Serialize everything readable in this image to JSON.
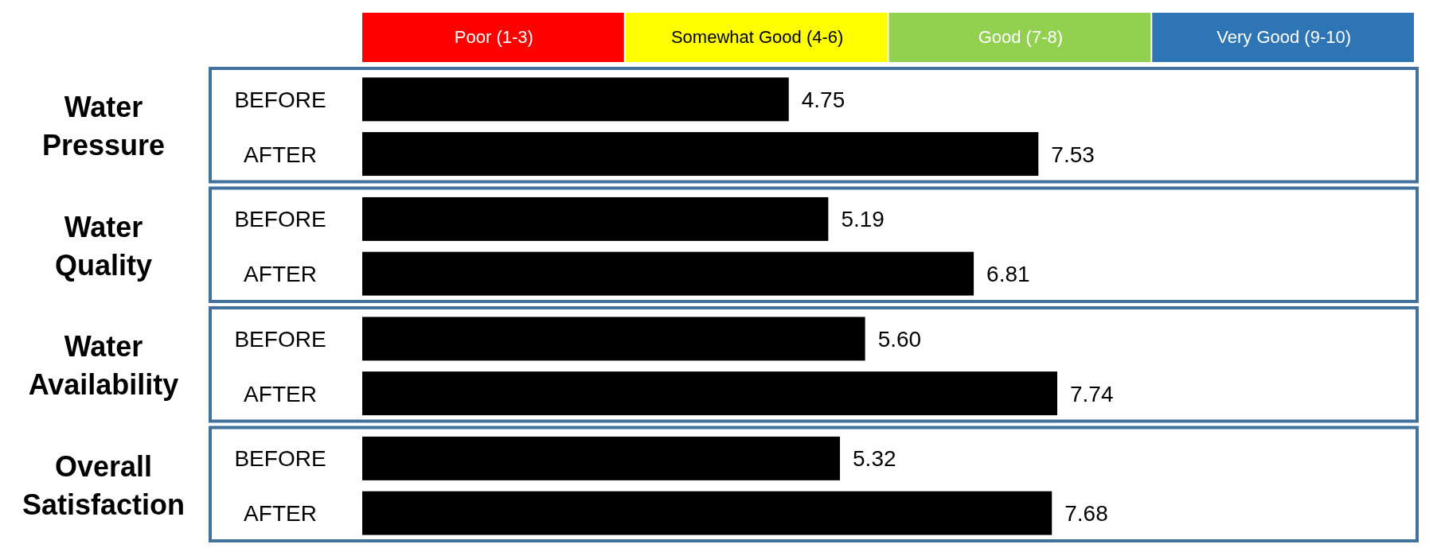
{
  "chart_data": [
    {
      "type": "other",
      "categories": [
        "Poor (1-3)",
        "Somewhat Good (4-6)",
        "Good (7-8)",
        "Very Good (9-10)"
      ],
      "colors": [
        "#ff0000",
        "#ffff00",
        "#92d050",
        "#2e75b6"
      ]
    },
    {
      "type": "bar",
      "orientation": "horizontal",
      "title": "Water Pressure",
      "categories": [
        "BEFORE",
        "AFTER"
      ],
      "values": [
        4.75,
        7.53
      ],
      "value_labels": [
        "4.75",
        "7.53"
      ],
      "color": "#000000"
    },
    {
      "type": "bar",
      "orientation": "horizontal",
      "title": "Water Quality",
      "categories": [
        "BEFORE",
        "AFTER"
      ],
      "values": [
        5.19,
        6.81
      ],
      "value_labels": [
        "5.19",
        "6.81"
      ],
      "color": "#000000"
    },
    {
      "type": "bar",
      "orientation": "horizontal",
      "title": "Water Availability",
      "categories": [
        "BEFORE",
        "AFTER"
      ],
      "values": [
        5.6,
        7.74
      ],
      "value_labels": [
        "5.60",
        "7.74"
      ],
      "color": "#000000"
    },
    {
      "type": "bar",
      "orientation": "horizontal",
      "title": "Overall Satisfaction",
      "categories": [
        "BEFORE",
        "AFTER"
      ],
      "values": [
        5.32,
        7.68
      ],
      "value_labels": [
        "5.32",
        "7.68"
      ],
      "color": "#000000"
    }
  ]
}
